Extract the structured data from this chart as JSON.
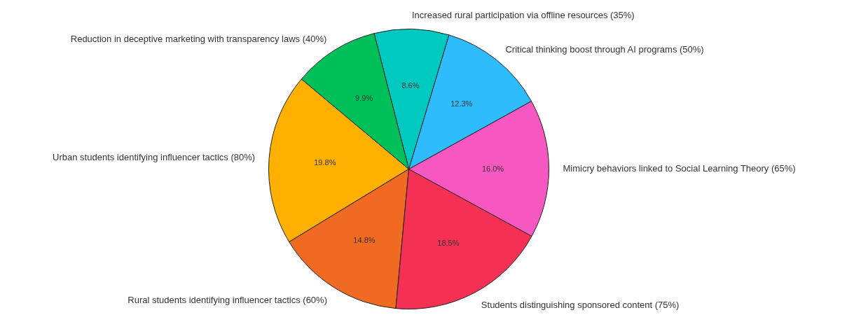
{
  "chart_data": {
    "type": "pie",
    "categories": [
      "Urban students identifying influencer tactics (80%)",
      "Rural students identifying influencer tactics (60%)",
      "Students distinguishing sponsored content (75%)",
      "Mimicry behaviors linked to Social Learning Theory (65%)",
      "Critical thinking boost through AI programs (50%)",
      "Increased rural participation via offline resources (35%)",
      "Reduction in deceptive marketing with transparency laws (40%)"
    ],
    "values": [
      19.8,
      14.8,
      18.5,
      16.0,
      12.3,
      8.6,
      9.9
    ],
    "colors": [
      "#ffb000",
      "#f06a22",
      "#f43055",
      "#f757c1",
      "#2ebcfc",
      "#00c9c0",
      "#00c05a"
    ],
    "value_labels": [
      "19.8%",
      "14.8%",
      "18.5%",
      "16.0%",
      "12.3%",
      "8.6%",
      "9.9%"
    ]
  }
}
